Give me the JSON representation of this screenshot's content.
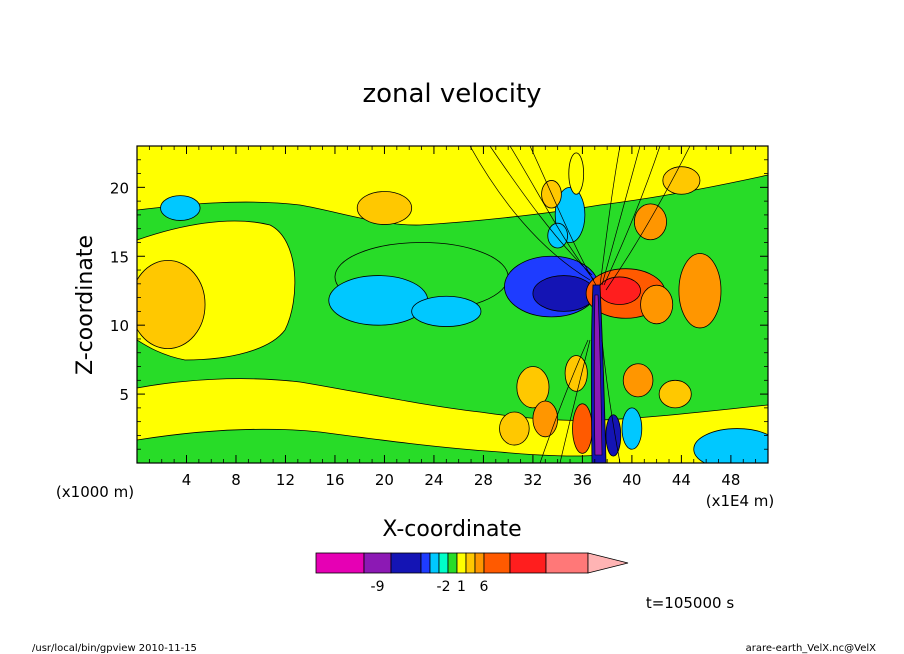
{
  "chart_data": {
    "type": "contour",
    "title": "zonal velocity",
    "xlabel": "X-coordinate",
    "ylabel": "Z-coordinate",
    "x_unit_left": "(x1000 m)",
    "x_unit_right": "(x1E4 m)",
    "xlim": [
      0,
      51
    ],
    "ylim": [
      0,
      23
    ],
    "x_ticks": [
      "4",
      "8",
      "12",
      "16",
      "20",
      "24",
      "28",
      "32",
      "36",
      "40",
      "44",
      "48"
    ],
    "y_ticks": [
      "5",
      "10",
      "15",
      "20"
    ],
    "time_label": "t=105000 s",
    "colorbar": {
      "colors": [
        "#e600b4",
        "#8c19b4",
        "#1414b4",
        "#1e3cff",
        "#00c8ff",
        "#00ffc8",
        "#28dc28",
        "#ffff00",
        "#ffc800",
        "#ff9600",
        "#ff5a00",
        "#ff1e1e",
        "#ff7878",
        "#ffb4b4"
      ],
      "labels": [
        {
          "text": "-9",
          "index": 1.5
        },
        {
          "text": "-2",
          "index": 5.5
        },
        {
          "text": "1",
          "index": 7.5
        },
        {
          "text": "6",
          "index": 10
        }
      ]
    },
    "blobs": [
      {
        "x": 2.5,
        "z": 11.5,
        "rx": 3.0,
        "rz": 3.2,
        "c": 8
      },
      {
        "x": 3.5,
        "z": 18.5,
        "rx": 1.6,
        "rz": 0.9,
        "c": 4
      },
      {
        "x": 20.0,
        "z": 18.5,
        "rx": 2.2,
        "rz": 1.2,
        "c": 8
      },
      {
        "x": 23.0,
        "z": 13.5,
        "rx": 7.0,
        "rz": 2.5,
        "c": 6
      },
      {
        "x": 19.5,
        "z": 11.8,
        "rx": 4.0,
        "rz": 1.8,
        "c": 4
      },
      {
        "x": 25.0,
        "z": 11.0,
        "rx": 2.8,
        "rz": 1.1,
        "c": 4
      },
      {
        "x": 33.5,
        "z": 12.8,
        "rx": 3.8,
        "rz": 2.2,
        "c": 3
      },
      {
        "x": 34.5,
        "z": 12.3,
        "rx": 2.5,
        "rz": 1.3,
        "c": 2
      },
      {
        "x": 32.0,
        "z": 5.5,
        "rx": 1.3,
        "rz": 1.5,
        "c": 8
      },
      {
        "x": 33.0,
        "z": 3.2,
        "rx": 1.0,
        "rz": 1.3,
        "c": 9
      },
      {
        "x": 35.5,
        "z": 6.5,
        "rx": 0.9,
        "rz": 1.3,
        "c": 8
      },
      {
        "x": 36.0,
        "z": 2.5,
        "rx": 0.8,
        "rz": 1.8,
        "c": 10
      },
      {
        "x": 30.5,
        "z": 2.5,
        "rx": 1.2,
        "rz": 1.2,
        "c": 8
      },
      {
        "x": 35.0,
        "z": 18.0,
        "rx": 1.2,
        "rz": 2.0,
        "c": 4
      },
      {
        "x": 34.0,
        "z": 16.5,
        "rx": 0.8,
        "rz": 0.9,
        "c": 4
      },
      {
        "x": 33.5,
        "z": 19.5,
        "rx": 0.8,
        "rz": 1.0,
        "c": 8
      },
      {
        "x": 35.5,
        "z": 21.0,
        "rx": 0.6,
        "rz": 1.5,
        "c": 7
      },
      {
        "x": 39.5,
        "z": 12.3,
        "rx": 3.2,
        "rz": 1.8,
        "c": 10
      },
      {
        "x": 39.0,
        "z": 12.5,
        "rx": 1.7,
        "rz": 1.0,
        "c": 11
      },
      {
        "x": 42.0,
        "z": 11.5,
        "rx": 1.3,
        "rz": 1.4,
        "c": 9
      },
      {
        "x": 45.5,
        "z": 12.5,
        "rx": 1.7,
        "rz": 2.7,
        "c": 9
      },
      {
        "x": 41.5,
        "z": 17.5,
        "rx": 1.3,
        "rz": 1.3,
        "c": 9
      },
      {
        "x": 40.5,
        "z": 6.0,
        "rx": 1.2,
        "rz": 1.2,
        "c": 9
      },
      {
        "x": 43.5,
        "z": 5.0,
        "rx": 1.3,
        "rz": 1.0,
        "c": 8
      },
      {
        "x": 40.0,
        "z": 2.5,
        "rx": 0.8,
        "rz": 1.5,
        "c": 4
      },
      {
        "x": 38.5,
        "z": 2.0,
        "rx": 0.6,
        "rz": 1.5,
        "c": 2
      },
      {
        "x": 48.5,
        "z": 1.0,
        "rx": 3.5,
        "rz": 1.5,
        "c": 4
      },
      {
        "x": 44.0,
        "z": 20.5,
        "rx": 1.5,
        "rz": 1.0,
        "c": 8
      }
    ]
  },
  "footer": {
    "left": "/usr/local/bin/gpview  2010-11-15",
    "right": "arare-earth_VelX.nc@VelX"
  }
}
